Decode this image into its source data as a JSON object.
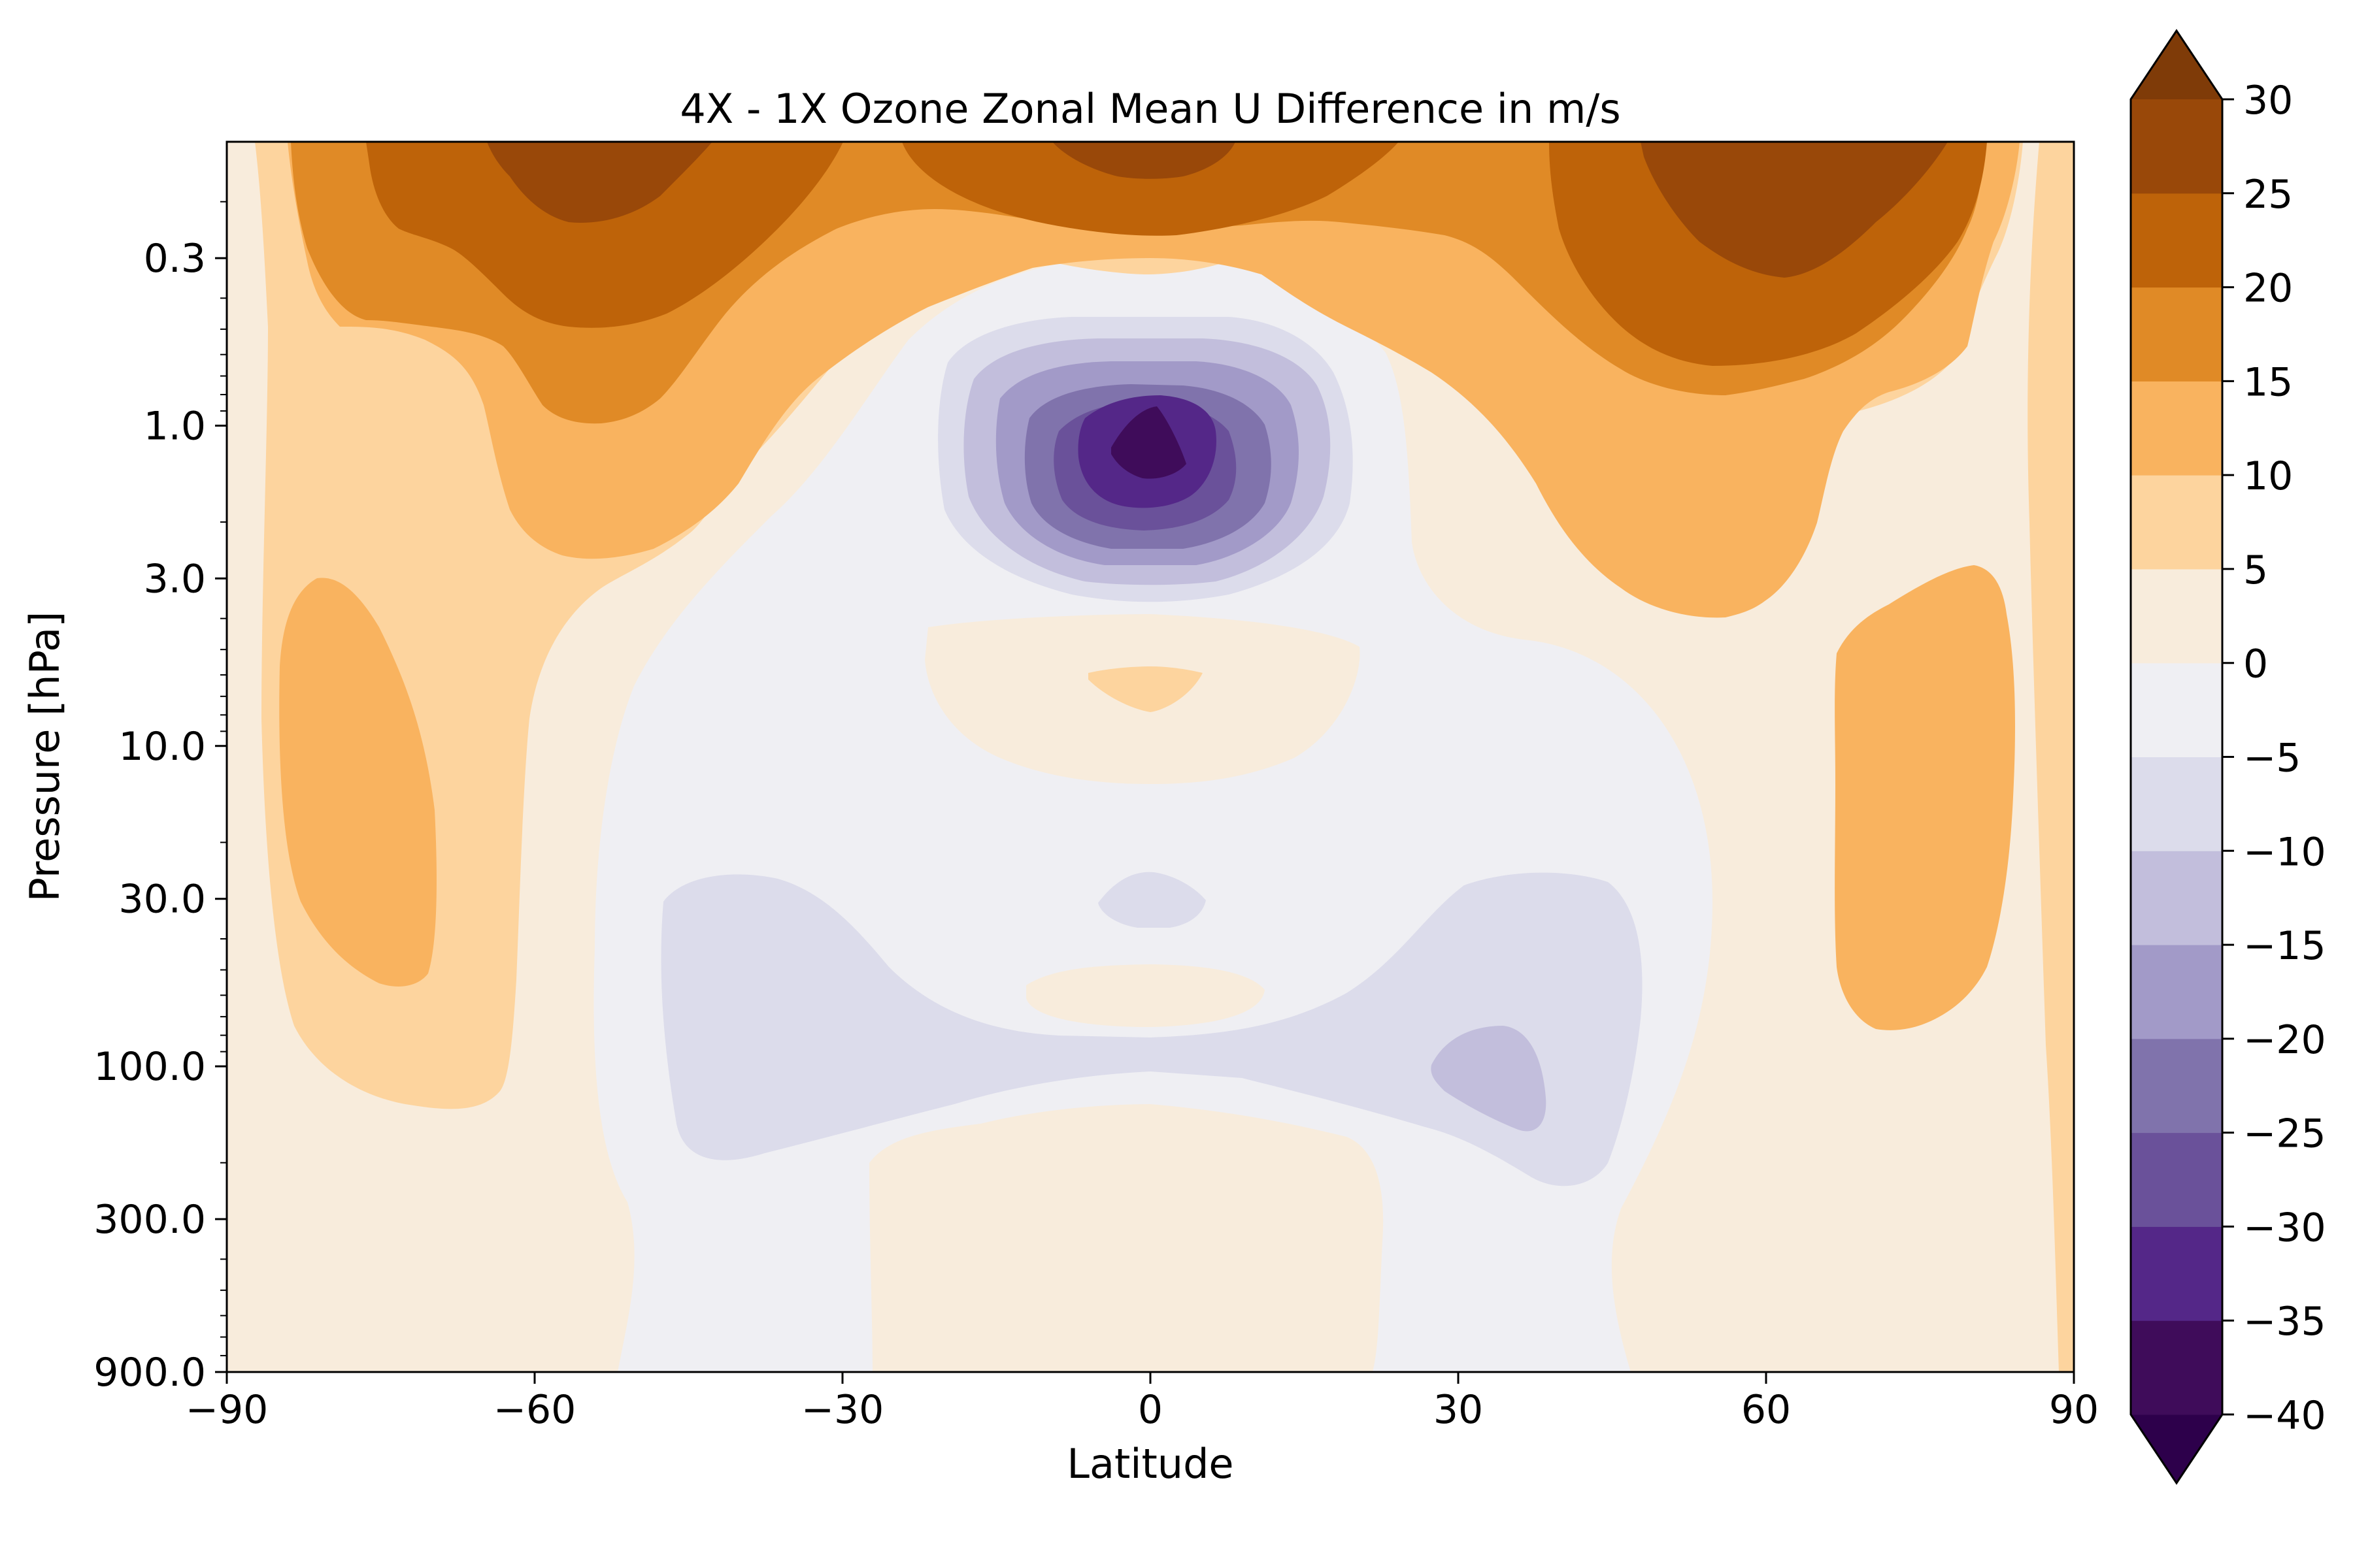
{
  "chart_data": {
    "type": "contourf",
    "title": "4X - 1X Ozone Zonal Mean U Difference in m/s",
    "xlabel": "Latitude",
    "ylabel": "Pressure [hPa]",
    "xlim": [
      -90,
      90
    ],
    "ylim": [
      900,
      0.13
    ],
    "y_scale": "log",
    "y_inverted": true,
    "x_ticks": [
      -90,
      -60,
      -30,
      0,
      30,
      60,
      90
    ],
    "x_tick_labels": [
      "−90",
      "−60",
      "−30",
      "0",
      "30",
      "60",
      "90"
    ],
    "y_ticks": [
      0.3,
      1.0,
      3.0,
      10.0,
      30.0,
      100.0,
      300.0,
      900.0
    ],
    "y_tick_labels": [
      "0.3",
      "1.0",
      "3.0",
      "10.0",
      "30.0",
      "100.0",
      "300.0",
      "900.0"
    ],
    "colorbar": {
      "levels": [
        -40,
        -35,
        -30,
        -25,
        -20,
        -15,
        -10,
        -5,
        0,
        5,
        10,
        15,
        20,
        25,
        30
      ],
      "tick_labels": [
        "−40",
        "−35",
        "−30",
        "−25",
        "−20",
        "−15",
        "−10",
        "−5",
        "0",
        "5",
        "10",
        "15",
        "20",
        "25",
        "30"
      ],
      "extend": "both",
      "colormap": "PuOr_r",
      "colors": [
        "#2d004b",
        "#3f0c5a",
        "#542788",
        "#6a519a",
        "#8073ac",
        "#a29ac8",
        "#c2bedc",
        "#dcdceb",
        "#efeff3",
        "#f8ecdc",
        "#fdd49e",
        "#f9b35f",
        "#e08a26",
        "#be6309",
        "#994809",
        "#7f3b08"
      ]
    },
    "features": [
      {
        "label": "stratopause westerly maximum, southern hemisphere",
        "lat": -57,
        "pressure_hPa": 0.15,
        "value_range": [
          25,
          30
        ]
      },
      {
        "label": "stratopause westerly maximum, northern hemisphere",
        "lat": 62,
        "pressure_hPa": 0.18,
        "value_range": [
          25,
          30
        ]
      },
      {
        "label": "equatorial upper-stratosphere easterly minimum",
        "lat": -1,
        "pressure_hPa": 1.2,
        "value_range": [
          -40,
          -35
        ]
      },
      {
        "label": "subpolar westerly band, southern hemisphere",
        "lat": -78,
        "pressure_hPa": 15,
        "value_range": [
          10,
          15
        ]
      },
      {
        "label": "subpolar westerly band, northern hemisphere",
        "lat": 76,
        "pressure_hPa": 20,
        "value_range": [
          10,
          15
        ]
      },
      {
        "label": "lower-stratosphere easterly, northern subtropics",
        "lat": 34,
        "pressure_hPa": 120,
        "value_range": [
          -15,
          -10
        ]
      },
      {
        "label": "tropical troposphere westerly",
        "lat": 0,
        "pressure_hPa": 500,
        "value_range": [
          0,
          5
        ]
      }
    ]
  }
}
